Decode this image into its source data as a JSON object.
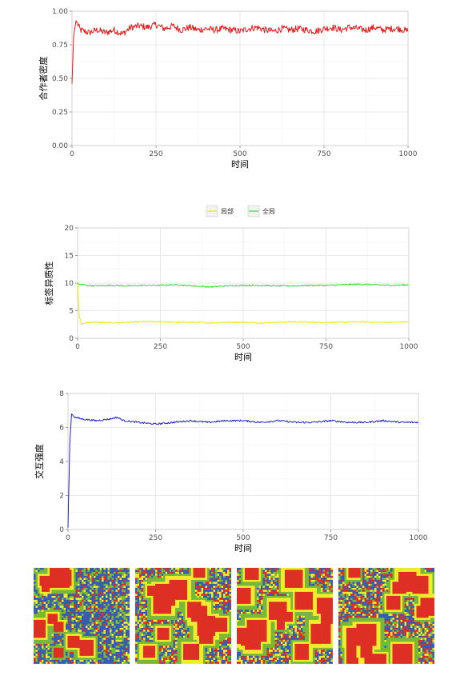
{
  "chart_data": [
    {
      "type": "line",
      "xlabel": "时间",
      "ylabel": "合作者密度",
      "xlim": [
        0,
        1000
      ],
      "ylim": [
        0,
        1
      ],
      "xticks": [
        "0",
        "250",
        "500",
        "750",
        "1000"
      ],
      "yticks": [
        "0.00",
        "0.25",
        "0.50",
        "0.75",
        "1.00"
      ],
      "grid": true,
      "series": [
        {
          "color": "#e41a1c",
          "x": [
            0,
            5,
            12,
            25,
            50,
            75,
            100,
            125,
            150,
            175,
            200,
            225,
            250,
            275,
            300,
            325,
            350,
            375,
            400,
            425,
            450,
            475,
            500,
            525,
            550,
            575,
            600,
            625,
            650,
            675,
            700,
            725,
            750,
            775,
            800,
            825,
            850,
            875,
            900,
            925,
            950,
            975,
            1000
          ],
          "y": [
            0.46,
            0.82,
            0.93,
            0.86,
            0.84,
            0.86,
            0.84,
            0.86,
            0.83,
            0.88,
            0.89,
            0.88,
            0.9,
            0.87,
            0.89,
            0.86,
            0.88,
            0.86,
            0.87,
            0.86,
            0.87,
            0.86,
            0.85,
            0.87,
            0.88,
            0.86,
            0.85,
            0.87,
            0.86,
            0.87,
            0.86,
            0.85,
            0.87,
            0.88,
            0.86,
            0.88,
            0.87,
            0.86,
            0.88,
            0.86,
            0.87,
            0.87,
            0.85
          ]
        }
      ]
    },
    {
      "type": "line",
      "xlabel": "时间",
      "ylabel": "标签异质性",
      "xlim": [
        0,
        1000
      ],
      "ylim": [
        0,
        20
      ],
      "xticks": [
        "0",
        "250",
        "500",
        "750",
        "1000"
      ],
      "yticks": [
        "0",
        "5",
        "10",
        "15",
        "20"
      ],
      "grid": true,
      "legend": "top",
      "series": [
        {
          "name": "局部",
          "color": "#f2e600",
          "x": [
            0,
            5,
            12,
            25,
            50,
            100,
            150,
            200,
            250,
            300,
            350,
            400,
            450,
            500,
            550,
            600,
            650,
            700,
            750,
            800,
            850,
            900,
            950,
            1000
          ],
          "y": [
            10.0,
            4.0,
            2.6,
            2.8,
            2.9,
            2.8,
            2.9,
            3.0,
            3.0,
            2.9,
            2.9,
            2.8,
            2.9,
            2.9,
            2.8,
            2.9,
            3.0,
            2.9,
            2.9,
            2.9,
            3.0,
            2.9,
            2.9,
            3.0
          ]
        },
        {
          "name": "全局",
          "color": "#33dd33",
          "x": [
            0,
            5,
            12,
            25,
            50,
            100,
            150,
            200,
            250,
            300,
            350,
            400,
            450,
            500,
            550,
            600,
            650,
            700,
            750,
            800,
            850,
            900,
            950,
            1000
          ],
          "y": [
            10.0,
            9.7,
            9.8,
            9.6,
            9.5,
            9.6,
            9.5,
            9.6,
            9.6,
            9.7,
            9.5,
            9.3,
            9.5,
            9.6,
            9.6,
            9.5,
            9.5,
            9.6,
            9.6,
            9.7,
            9.8,
            9.7,
            9.6,
            9.7
          ]
        }
      ]
    },
    {
      "type": "line",
      "xlabel": "时间",
      "ylabel": "交互强度",
      "xlim": [
        0,
        1000
      ],
      "ylim": [
        0,
        8
      ],
      "xticks": [
        "0",
        "250",
        "500",
        "750",
        "1000"
      ],
      "yticks": [
        "0",
        "2",
        "4",
        "6",
        "8"
      ],
      "grid": true,
      "series": [
        {
          "color": "#2222cc",
          "x": [
            0,
            5,
            10,
            20,
            40,
            80,
            120,
            140,
            160,
            200,
            250,
            300,
            350,
            400,
            450,
            500,
            550,
            600,
            650,
            700,
            750,
            800,
            850,
            900,
            950,
            1000
          ],
          "y": [
            0.1,
            5.0,
            6.8,
            6.6,
            6.5,
            6.4,
            6.5,
            6.6,
            6.4,
            6.3,
            6.2,
            6.3,
            6.4,
            6.3,
            6.4,
            6.4,
            6.3,
            6.4,
            6.3,
            6.3,
            6.4,
            6.3,
            6.3,
            6.4,
            6.3,
            6.3
          ]
        }
      ]
    }
  ],
  "lattice_colors": {
    "red": "#dd2f24",
    "blue": "#3a5cb0",
    "yellow": "#f2ea2c",
    "green": "#77b83a"
  }
}
